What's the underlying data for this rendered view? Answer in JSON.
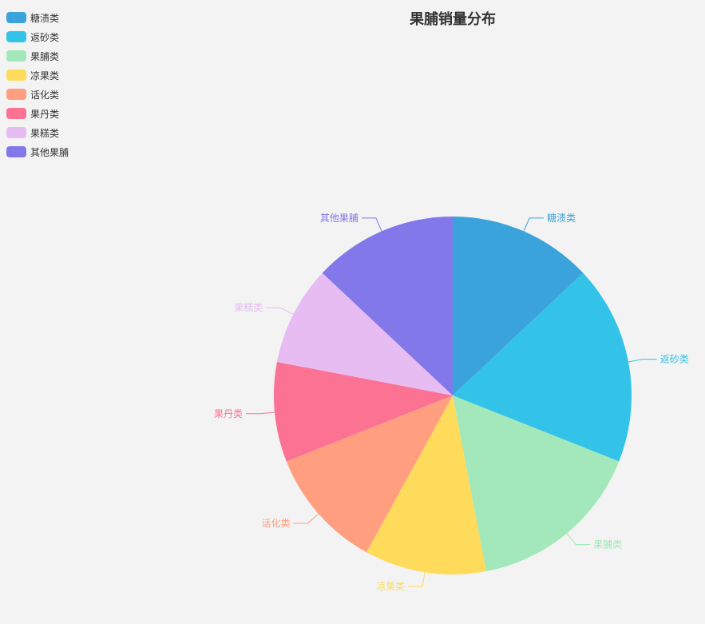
{
  "chart_data": {
    "type": "pie",
    "title": "果脯销量分布",
    "legend_position": "top-left",
    "categories": [
      "糖渍类",
      "返砂类",
      "果脯类",
      "凉果类",
      "话化类",
      "果丹类",
      "果糕类",
      "其他果脯"
    ],
    "values": [
      13,
      18,
      16,
      11,
      11,
      9,
      9,
      13
    ],
    "colors": [
      "#3ba3db",
      "#33c3e8",
      "#a2e8ba",
      "#ffdb5c",
      "#ff9f7f",
      "#fb7293",
      "#e7bcf3",
      "#8378ea"
    ]
  }
}
